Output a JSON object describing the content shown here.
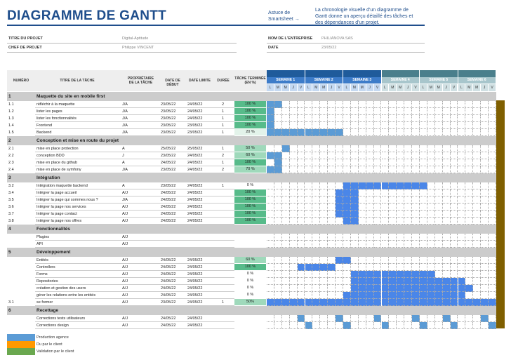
{
  "header": {
    "title": "DIAGRAMME DE GANTT",
    "tip_label": "Astuce de Smartsheet →",
    "tip_text": "La chronologie visuelle d'un diagramme de Gantt donne un aperçu détaillé des tâches et des dépendances d'un projet."
  },
  "project": {
    "title_label": "TITRE DU PROJET",
    "title_value": "Digital-Aptitude",
    "manager_label": "CHEF DE PROJET",
    "manager_value": "Philippe VINCENT",
    "company_label": "NOM DE L'ENTREPRISE",
    "company_value": "PHILIANOVA SAS",
    "date_label": "DATE",
    "date_value": "23/05/22"
  },
  "columns": {
    "num": "NUMÉRO",
    "title": "TITRE DE LA TÂCHE",
    "owner": "PROPRIÉTAIRE DE LA TÂCHE",
    "start": "DATE DE DÉBUT",
    "end": "DATE LIMITE",
    "duration": "DURÉE",
    "done": "TÂCHE TERMINÉE (EN %)"
  },
  "weeks": [
    "SEMAINE 1",
    "SEMAINE 2",
    "SEMAINE 3",
    "SEMAINE 4",
    "SEMAINE 5",
    "SEMAINE 6"
  ],
  "days": [
    "L",
    "M",
    "M",
    "J",
    "V"
  ],
  "colors": {
    "bar_a": "#5b9bd5",
    "bar_b": "#4a86e8",
    "pct_full": "#57bb8a",
    "pct_mid": "#9fd9bb",
    "pct_low": "#e3f3ea",
    "week_dark": "#1f5b9b",
    "week_teal": "#4a7f8c"
  },
  "rows": [
    {
      "type": "sec",
      "num": "1",
      "title": "Maquette du site en mobile first"
    },
    {
      "num": "1.1",
      "title": "réfléchir à la maquette",
      "owner": "J/A",
      "start": "23/05/22",
      "end": "24/05/22",
      "dur": "2",
      "pct": "100 %",
      "pv": 100,
      "bars": [
        0,
        1
      ],
      "c": "a"
    },
    {
      "num": "1.2",
      "title": "lister les pages",
      "owner": "J/A",
      "start": "23/05/22",
      "end": "24/05/22",
      "dur": "1",
      "pct": "100 %",
      "pv": 100,
      "bars": [
        0
      ],
      "c": "a"
    },
    {
      "num": "1.3",
      "title": "lister les fonctionnalités",
      "owner": "J/A",
      "start": "23/05/22",
      "end": "24/05/22",
      "dur": "1",
      "pct": "100 %",
      "pv": 100,
      "bars": [
        0
      ],
      "c": "a"
    },
    {
      "num": "1.4",
      "title": "Frontend",
      "owner": "J/A",
      "start": "23/05/22",
      "end": "23/05/22",
      "dur": "1",
      "pct": "100 %",
      "pv": 100,
      "bars": [
        0
      ],
      "c": "a"
    },
    {
      "num": "1.5",
      "title": "Backend",
      "owner": "J/A",
      "start": "23/05/22",
      "end": "23/05/22",
      "dur": "1",
      "pct": "20 %",
      "pv": 20,
      "bars": [
        0,
        1,
        2,
        3,
        4,
        5,
        6,
        7,
        8,
        9
      ],
      "c": "a"
    },
    {
      "type": "sec",
      "num": "2",
      "title": "Conception et mise en route du projet"
    },
    {
      "num": "2.1",
      "title": "mise en place protection",
      "owner": "A",
      "start": "25/05/22",
      "end": "25/05/22",
      "dur": "1",
      "pct": "50 %",
      "pv": 50,
      "bars": [
        2
      ],
      "c": "a"
    },
    {
      "num": "2.2",
      "title": "conception BDD",
      "owner": "J",
      "start": "23/05/22",
      "end": "24/05/22",
      "dur": "2",
      "pct": "60 %",
      "pv": 60,
      "bars": [
        0,
        1
      ],
      "c": "a"
    },
    {
      "num": "2.3",
      "title": "mise en place du github",
      "owner": "A",
      "start": "24/05/22",
      "end": "24/05/22",
      "dur": "1",
      "pct": "100 %",
      "pv": 100,
      "bars": [
        1
      ],
      "c": "a"
    },
    {
      "num": "2.4",
      "title": "mise en place de symfony",
      "owner": "J/A",
      "start": "23/05/22",
      "end": "24/05/22",
      "dur": "2",
      "pct": "70 %",
      "pv": 70,
      "bars": [
        0,
        1
      ],
      "c": "a"
    },
    {
      "type": "sec",
      "num": "3",
      "title": "Intégration"
    },
    {
      "num": "3.2",
      "title": "Intégration maquette backend",
      "owner": "A",
      "start": "23/05/22",
      "end": "24/05/22",
      "dur": "1",
      "pct": "0 %",
      "pv": 0,
      "bars": [
        10,
        11,
        12,
        13,
        14,
        15,
        16,
        17,
        18,
        19,
        20
      ],
      "c": "b"
    },
    {
      "num": "3.4",
      "title": "Intégrer la page accueil",
      "owner": "A/J",
      "start": "24/05/22",
      "end": "24/05/22",
      "dur": "",
      "pct": "100 %",
      "pv": 100,
      "bars": [
        9,
        10,
        11
      ],
      "c": "b"
    },
    {
      "num": "3.5",
      "title": "Intégrer la page qui sommes nous ?",
      "owner": "J/A",
      "start": "24/05/22",
      "end": "24/05/22",
      "dur": "",
      "pct": "100 %",
      "pv": 100,
      "bars": [
        9,
        10,
        11
      ],
      "c": "b"
    },
    {
      "num": "3.6",
      "title": "Intégrer la page nos services",
      "owner": "A/J",
      "start": "24/05/22",
      "end": "24/05/22",
      "dur": "",
      "pct": "100 %",
      "pv": 100,
      "bars": [
        9,
        10,
        11
      ],
      "c": "b"
    },
    {
      "num": "3.7",
      "title": "Intégrer la page contact",
      "owner": "A/J",
      "start": "24/05/22",
      "end": "24/05/22",
      "dur": "",
      "pct": "100 %",
      "pv": 100,
      "bars": [
        9,
        10,
        11
      ],
      "c": "b"
    },
    {
      "num": "3.8",
      "title": "Intégrer la page nos offres",
      "owner": "A/J",
      "start": "24/05/22",
      "end": "24/05/22",
      "dur": "",
      "pct": "100 %",
      "pv": 100,
      "bars": [
        10,
        11
      ],
      "c": "b"
    },
    {
      "type": "sec",
      "num": "4",
      "title": "Fonctionnalités"
    },
    {
      "num": "",
      "title": "Plugins",
      "owner": "A/J",
      "start": "",
      "end": "",
      "dur": "",
      "pct": "",
      "bars": [],
      "c": "b"
    },
    {
      "num": "",
      "title": "API",
      "owner": "A/J",
      "start": "",
      "end": "",
      "dur": "",
      "pct": "",
      "bars": [],
      "c": "b"
    },
    {
      "type": "sec",
      "num": "5",
      "title": "Développement"
    },
    {
      "num": "",
      "title": "Entités",
      "owner": "A/J",
      "start": "24/05/22",
      "end": "24/05/22",
      "dur": "",
      "pct": "60 %",
      "pv": 60,
      "bars": [
        9,
        10
      ],
      "c": "b"
    },
    {
      "num": "",
      "title": "Controllers",
      "owner": "A/J",
      "start": "24/05/22",
      "end": "24/05/22",
      "dur": "",
      "pct": "100 %",
      "pv": 100,
      "bars": [
        4,
        5,
        6,
        7,
        8
      ],
      "c": "b"
    },
    {
      "num": "",
      "title": "Forms",
      "owner": "A/J",
      "start": "24/05/22",
      "end": "24/05/22",
      "dur": "",
      "pct": "0 %",
      "pv": 0,
      "bars": [
        11,
        12,
        13,
        14,
        15,
        16,
        17,
        18,
        19,
        20,
        21
      ],
      "c": "b"
    },
    {
      "num": "",
      "title": "Repositories",
      "owner": "A/J",
      "start": "24/05/22",
      "end": "24/05/22",
      "dur": "",
      "pct": "0 %",
      "pv": 0,
      "bars": [
        11,
        12,
        13,
        14,
        15,
        16,
        17,
        18,
        19,
        20,
        21,
        22,
        23,
        24,
        25
      ],
      "c": "b"
    },
    {
      "num": "",
      "title": "création et gestion des users",
      "owner": "A/J",
      "start": "24/05/22",
      "end": "24/05/22",
      "dur": "",
      "pct": "0 %",
      "pv": 0,
      "bars": [
        11,
        12,
        13,
        14,
        15,
        16,
        17,
        18,
        19,
        20,
        21,
        22,
        23,
        24,
        25,
        26
      ],
      "c": "b"
    },
    {
      "num": "",
      "title": "gérer les relations entre les entités",
      "owner": "A/J",
      "start": "24/05/22",
      "end": "24/05/22",
      "dur": "",
      "pct": "0 %",
      "pv": 0,
      "bars": [
        10,
        11,
        12,
        13,
        14,
        15,
        16,
        17,
        18,
        19,
        20,
        21,
        22,
        23,
        24,
        25
      ],
      "c": "b"
    },
    {
      "num": "3.1",
      "title": "se former",
      "owner": "A/J",
      "start": "23/05/22",
      "end": "24/05/22",
      "dur": "1",
      "pct": "50%",
      "pv": 50,
      "bars": [
        0,
        1,
        2,
        3,
        4,
        5,
        6,
        7,
        8,
        9,
        10,
        11,
        12,
        13,
        14,
        15,
        16,
        17,
        18,
        19,
        20,
        21,
        22,
        23,
        24,
        25,
        26,
        27,
        28,
        29
      ],
      "c": "b"
    },
    {
      "type": "sec",
      "num": "6",
      "title": "Recettage"
    },
    {
      "num": "",
      "title": "Corrections tests utilisateurs",
      "owner": "A/J",
      "start": "24/05/22",
      "end": "24/05/22",
      "dur": "",
      "pct": "",
      "bars": [
        4,
        9,
        14,
        19,
        23,
        28
      ],
      "c": "a"
    },
    {
      "num": "",
      "title": "Corrections design",
      "owner": "A/J",
      "start": "24/05/22",
      "end": "24/05/22",
      "dur": "",
      "pct": "",
      "bars": [
        5,
        10,
        15,
        20,
        24,
        29
      ],
      "c": "a"
    }
  ],
  "legend": [
    {
      "label": "Production agence",
      "color": "#5b9bd5"
    },
    {
      "label": "Du par le client",
      "color": "#ff9900"
    },
    {
      "label": "Validation par le client",
      "color": "#6aa84f"
    }
  ]
}
